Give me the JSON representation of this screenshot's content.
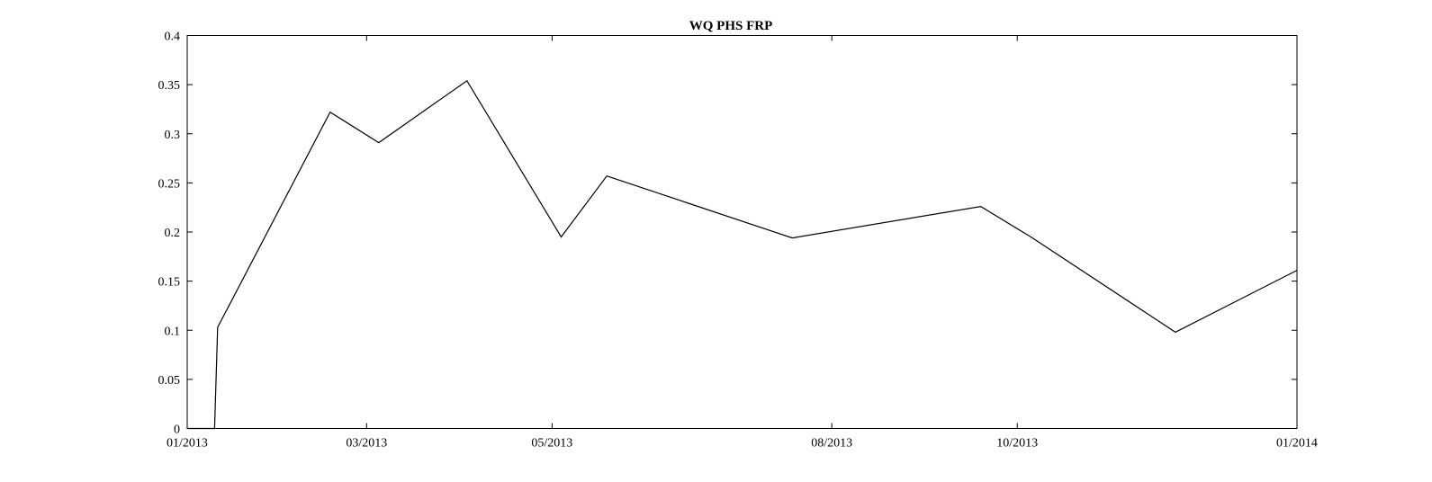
{
  "chart_data": {
    "type": "line",
    "title": "WQ PHS FRP",
    "xlabel": "",
    "ylabel": "",
    "xlim": [
      "2013-01-01",
      "2014-01-01"
    ],
    "ylim": [
      0,
      0.4
    ],
    "grid": false,
    "x_ticks": [
      {
        "date": "2013-01-01",
        "label": "01/2013"
      },
      {
        "date": "2013-03-01",
        "label": "03/2013"
      },
      {
        "date": "2013-05-01",
        "label": "05/2013"
      },
      {
        "date": "2013-08-01",
        "label": "08/2013"
      },
      {
        "date": "2013-10-01",
        "label": "10/2013"
      },
      {
        "date": "2014-01-01",
        "label": "01/2014"
      }
    ],
    "y_ticks": [
      {
        "value": 0,
        "label": "0"
      },
      {
        "value": 0.05,
        "label": "0.05"
      },
      {
        "value": 0.1,
        "label": "0.1"
      },
      {
        "value": 0.15,
        "label": "0.15"
      },
      {
        "value": 0.2,
        "label": "0.2"
      },
      {
        "value": 0.25,
        "label": "0.25"
      },
      {
        "value": 0.3,
        "label": "0.3"
      },
      {
        "value": 0.35,
        "label": "0.35"
      },
      {
        "value": 0.4,
        "label": "0.4"
      }
    ],
    "series": [
      {
        "color": "#000000",
        "points": [
          {
            "x": "2013-01-01",
            "y": 0
          },
          {
            "x": "2013-01-10",
            "y": 0
          },
          {
            "x": "2013-01-11",
            "y": 0.103
          },
          {
            "x": "2013-02-17",
            "y": 0.322
          },
          {
            "x": "2013-03-05",
            "y": 0.291
          },
          {
            "x": "2013-04-03",
            "y": 0.354
          },
          {
            "x": "2013-05-04",
            "y": 0.195
          },
          {
            "x": "2013-05-19",
            "y": 0.257
          },
          {
            "x": "2013-07-19",
            "y": 0.194
          },
          {
            "x": "2013-09-19",
            "y": 0.226
          },
          {
            "x": "2013-10-06",
            "y": 0.194
          },
          {
            "x": "2013-11-22",
            "y": 0.098
          },
          {
            "x": "2014-01-01",
            "y": 0.161
          }
        ]
      }
    ]
  }
}
